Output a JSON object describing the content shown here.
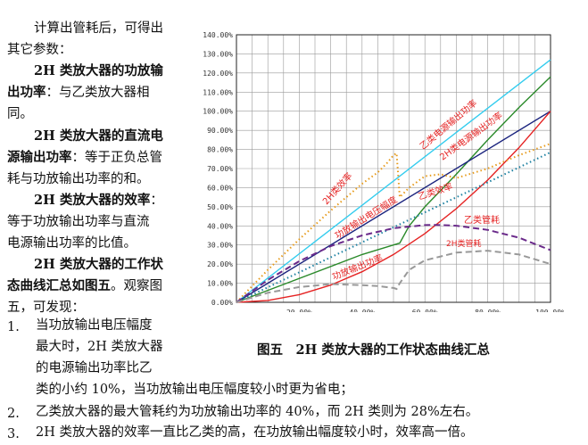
{
  "left_text": {
    "intro": [
      "计算出管耗后，可得出",
      "其它参数："
    ],
    "output_power": {
      "title_1": "2H 类放大器的功放输",
      "title_2": "出功率",
      "body": "：与乙类放大器相",
      "body_2": "同。"
    },
    "dc_power": {
      "title_1": "2H 类放大器的直流电",
      "title_2": "源输出功率",
      "body": "：等于正负总管",
      "body_2": "耗与功放输出功率的和。"
    },
    "efficiency": {
      "title_1": "2H 类放大器的效率",
      "body": "：",
      "body_2": "等于功放输出功率与直流",
      "body_3": "电源输出功率的比值。"
    },
    "summary": {
      "title_1": "2H 类放大器的工作状",
      "title_2": "态曲线汇总如图五",
      "body": "。观察图",
      "body_2": "五，可发现："
    }
  },
  "findings": [
    {
      "num": "1.",
      "lines": [
        "当功放输出电压幅度",
        "最大时，2H 类放大器",
        "的电源输出功率比乙"
      ],
      "cont": "类的小约 10%，当功放输出电压幅度较小时更为省电；"
    },
    {
      "num": "2.",
      "text": "乙类放大器的最大管耗约为功放输出功率的 40%，而 2H 类则为 28%左右。"
    },
    {
      "num": "3.",
      "text": "2H 类放大器的效率一直比乙类的高，在功放输出幅度较小时，效率高一倍。"
    }
  ],
  "caption": "图五　2H 类放大器的工作状态曲线汇总",
  "chart_data": {
    "type": "line",
    "x_ticks": [
      "20.00%",
      "40.00%",
      "60.00%",
      "80.00%",
      "100.00%"
    ],
    "y_ticks": [
      "0.00%",
      "10.00%",
      "20.00%",
      "30.00%",
      "40.00%",
      "50.00%",
      "60.00%",
      "70.00%",
      "80.00%",
      "90.00%",
      "100.00%",
      "110.00%",
      "120.00%",
      "130.00%",
      "140.00%"
    ],
    "xlim": [
      0,
      1.0
    ],
    "ylim": [
      0,
      1.4
    ],
    "grid": true,
    "series": [
      {
        "name": "乙类电源输出功率",
        "color": "#33ccee",
        "style": "solid",
        "x": [
          0,
          1.0
        ],
        "y": [
          0,
          1.27
        ]
      },
      {
        "name": "2H类电源输出功率",
        "color": "#2a8a2a",
        "style": "solid",
        "x": [
          0,
          0.4,
          0.5,
          0.52,
          0.55,
          0.6,
          0.7,
          0.8,
          0.9,
          1.0
        ],
        "y": [
          0,
          0.25,
          0.3,
          0.31,
          0.4,
          0.5,
          0.67,
          0.85,
          1.02,
          1.18
        ]
      },
      {
        "name": "功放输出电压幅度",
        "color": "#1a237e",
        "style": "solid",
        "x": [
          0,
          1.0
        ],
        "y": [
          0,
          1.0
        ]
      },
      {
        "name": "功放输出功率",
        "color": "#e52222",
        "style": "solid",
        "x": [
          0,
          0.1,
          0.2,
          0.3,
          0.4,
          0.5,
          0.6,
          0.7,
          0.8,
          0.9,
          1.0
        ],
        "y": [
          0,
          0.01,
          0.04,
          0.09,
          0.16,
          0.25,
          0.36,
          0.49,
          0.64,
          0.81,
          1.0
        ]
      },
      {
        "name": "2H类效率",
        "color": "#e69a1a",
        "style": "dotted",
        "x": [
          0,
          0.1,
          0.2,
          0.3,
          0.4,
          0.45,
          0.48,
          0.5,
          0.51,
          0.52,
          0.55,
          0.6,
          0.65,
          0.7,
          0.8,
          0.9,
          1.0
        ],
        "y": [
          0,
          0.17,
          0.33,
          0.48,
          0.62,
          0.68,
          0.73,
          0.77,
          0.78,
          0.55,
          0.6,
          0.66,
          0.67,
          0.65,
          0.7,
          0.77,
          0.83
        ]
      },
      {
        "name": "乙类效率",
        "color": "#1a7fa0",
        "style": "dotted",
        "x": [
          0,
          1.0
        ],
        "y": [
          0,
          0.785
        ]
      },
      {
        "name": "乙类管耗",
        "color": "#6a2a8a",
        "style": "dashed",
        "x": [
          0,
          0.1,
          0.2,
          0.3,
          0.4,
          0.5,
          0.6,
          0.637,
          0.7,
          0.8,
          0.9,
          1.0
        ],
        "y": [
          0,
          0.117,
          0.215,
          0.294,
          0.35,
          0.388,
          0.404,
          0.405,
          0.401,
          0.379,
          0.338,
          0.273
        ]
      },
      {
        "name": "2H类管耗",
        "color": "#999999",
        "style": "dashed",
        "x": [
          0,
          0.1,
          0.2,
          0.3,
          0.4,
          0.45,
          0.5,
          0.51,
          0.52,
          0.55,
          0.6,
          0.7,
          0.8,
          0.9,
          1.0
        ],
        "y": [
          0,
          0.05,
          0.08,
          0.095,
          0.09,
          0.085,
          0.075,
          0.07,
          0.1,
          0.17,
          0.22,
          0.26,
          0.27,
          0.25,
          0.2
        ]
      }
    ],
    "annotations": [
      "乙类电源输出功率",
      "2H类电源输出功率",
      "2H类效率",
      "功放输出电压幅度",
      "乙类效率",
      "乙类管耗",
      "2H类管耗",
      "功放输出功率"
    ]
  }
}
